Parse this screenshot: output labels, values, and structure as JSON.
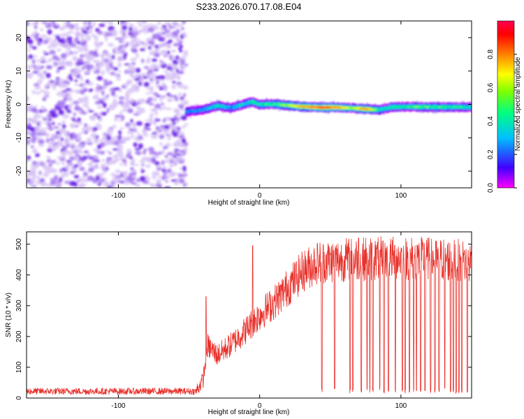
{
  "figure": {
    "title": "S233.2026.070.17.08.E04"
  },
  "chart_data": [
    {
      "type": "heatmap",
      "xlabel": "Height of straight line (km)",
      "ylabel": "Frequency (Hz)",
      "xlim": [
        -165,
        150
      ],
      "ylim": [
        -25,
        25
      ],
      "xticks": [
        -100,
        0,
        100
      ],
      "yticks": [
        -20,
        -10,
        0,
        10,
        20
      ],
      "colorbar": {
        "label": "Normalized spectral amplitude",
        "range": [
          0,
          1
        ],
        "ticks": [
          0.0,
          0.2,
          0.4,
          0.6,
          0.8
        ],
        "colormap": [
          "#ff00ff",
          "#4000ff",
          "#00c0ff",
          "#00ff80",
          "#80ff00",
          "#ffff00",
          "#ff8000",
          "#ff0000",
          "#ff0050"
        ]
      },
      "noise_region_x": [
        -165,
        -52
      ],
      "ridge": [
        {
          "x": -52,
          "f": -2.2,
          "amp": 0.25
        },
        {
          "x": -40,
          "f": -1.6,
          "amp": 0.3
        },
        {
          "x": -30,
          "f": -0.4,
          "amp": 0.45
        },
        {
          "x": -20,
          "f": -1.0,
          "amp": 0.35
        },
        {
          "x": -10,
          "f": 0.2,
          "amp": 0.4
        },
        {
          "x": -5,
          "f": 0.8,
          "amp": 0.5
        },
        {
          "x": 0,
          "f": 0.0,
          "amp": 0.45
        },
        {
          "x": 10,
          "f": 0.1,
          "amp": 0.5
        },
        {
          "x": 20,
          "f": -0.3,
          "amp": 0.6
        },
        {
          "x": 30,
          "f": -0.7,
          "amp": 0.75
        },
        {
          "x": 45,
          "f": -0.9,
          "amp": 0.9
        },
        {
          "x": 55,
          "f": -0.9,
          "amp": 0.8
        },
        {
          "x": 65,
          "f": -1.1,
          "amp": 0.6
        },
        {
          "x": 75,
          "f": -1.4,
          "amp": 0.85
        },
        {
          "x": 85,
          "f": -1.6,
          "amp": 0.45
        },
        {
          "x": 95,
          "f": -0.7,
          "amp": 0.5
        },
        {
          "x": 110,
          "f": -0.7,
          "amp": 0.55
        },
        {
          "x": 125,
          "f": -0.8,
          "amp": 0.5
        },
        {
          "x": 140,
          "f": -0.8,
          "amp": 0.5
        },
        {
          "x": 150,
          "f": -0.8,
          "amp": 0.45
        }
      ]
    },
    {
      "type": "line",
      "xlabel": "Height of straight line (km)",
      "ylabel": "SNR (10 * v/v)",
      "xlim": [
        -165,
        150
      ],
      "ylim": [
        0,
        540
      ],
      "xticks": [
        -100,
        0,
        100
      ],
      "yticks": [
        0,
        100,
        200,
        300,
        400,
        500
      ],
      "color": "#e8302a",
      "envelope": [
        {
          "x": -165,
          "y": 22
        },
        {
          "x": -45,
          "y": 22
        },
        {
          "x": -40,
          "y": 60
        },
        {
          "x": -37,
          "y": 170
        },
        {
          "x": -30,
          "y": 140
        },
        {
          "x": -20,
          "y": 175
        },
        {
          "x": -10,
          "y": 220
        },
        {
          "x": 0,
          "y": 270
        },
        {
          "x": 10,
          "y": 310
        },
        {
          "x": 20,
          "y": 360
        },
        {
          "x": 30,
          "y": 410
        },
        {
          "x": 40,
          "y": 440
        },
        {
          "x": 60,
          "y": 450
        },
        {
          "x": 100,
          "y": 455
        },
        {
          "x": 130,
          "y": 450
        },
        {
          "x": 150,
          "y": 440
        }
      ],
      "spikes": [
        {
          "x": -38,
          "y": 330
        },
        {
          "x": -5,
          "y": 495
        },
        {
          "x": 70,
          "y": 520
        }
      ],
      "dropouts": [
        44,
        53,
        64,
        66,
        72,
        76,
        78,
        80,
        85,
        88,
        91,
        96,
        101,
        103,
        106,
        109,
        111,
        114,
        117,
        121,
        124,
        127,
        131,
        135,
        137,
        139,
        141,
        143,
        147
      ]
    }
  ]
}
